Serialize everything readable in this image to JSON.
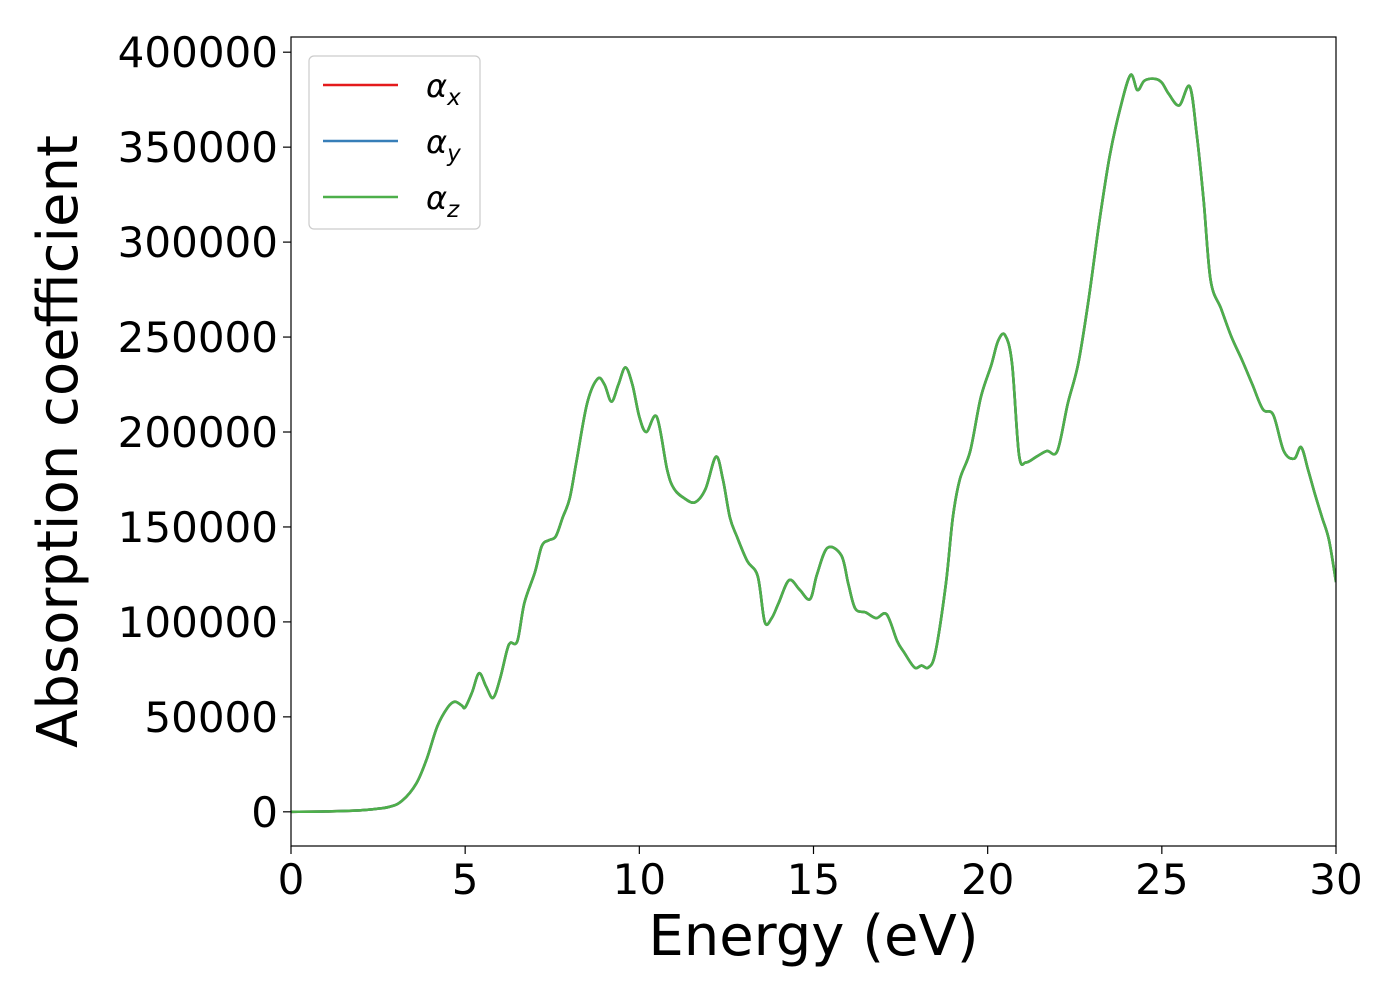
{
  "chart_data": {
    "type": "line",
    "title": "",
    "xlabel": "Energy (eV)",
    "ylabel": "Absorption coefficient",
    "xlim": [
      0,
      30
    ],
    "ylim": [
      -18000,
      408000
    ],
    "xticks": [
      0,
      5,
      10,
      15,
      20,
      25,
      30
    ],
    "yticks": [
      0,
      50000,
      100000,
      150000,
      200000,
      250000,
      300000,
      350000,
      400000
    ],
    "xtick_labels": [
      "0",
      "5",
      "10",
      "15",
      "20",
      "25",
      "30"
    ],
    "ytick_labels": [
      "0",
      "50000",
      "100000",
      "150000",
      "200000",
      "250000",
      "300000",
      "350000",
      "400000"
    ],
    "grid": false,
    "legend_position": "upper-left",
    "x": [
      0,
      1,
      2,
      2.8,
      3.2,
      3.6,
      3.9,
      4.2,
      4.5,
      4.7,
      4.9,
      5.0,
      5.2,
      5.4,
      5.6,
      5.8,
      6.0,
      6.2,
      6.3,
      6.5,
      6.7,
      7.0,
      7.2,
      7.4,
      7.6,
      7.8,
      8.0,
      8.2,
      8.5,
      8.8,
      9.0,
      9.2,
      9.4,
      9.6,
      9.8,
      10.0,
      10.2,
      10.5,
      10.8,
      11.0,
      11.3,
      11.6,
      11.9,
      12.2,
      12.4,
      12.6,
      12.8,
      13.1,
      13.4,
      13.6,
      13.8,
      14.0,
      14.3,
      14.6,
      14.9,
      15.1,
      15.4,
      15.8,
      16.0,
      16.2,
      16.5,
      16.8,
      17.1,
      17.4,
      17.6,
      17.9,
      18.1,
      18.3,
      18.5,
      18.8,
      19.0,
      19.2,
      19.5,
      19.8,
      20.1,
      20.3,
      20.5,
      20.7,
      20.9,
      21.1,
      21.4,
      21.7,
      22.0,
      22.3,
      22.6,
      22.9,
      23.2,
      23.5,
      23.8,
      24.1,
      24.3,
      24.5,
      24.8,
      25.0,
      25.2,
      25.5,
      25.8,
      26.0,
      26.2,
      26.4,
      26.7,
      27.0,
      27.3,
      27.6,
      27.9,
      28.2,
      28.5,
      28.8,
      29.0,
      29.2,
      29.4,
      29.6,
      29.8,
      30.0
    ],
    "series": [
      {
        "name": "αx",
        "label_base": "α",
        "label_sub": "x",
        "color": "#e41a1c",
        "y": [
          0,
          200,
          800,
          2500,
          6000,
          15000,
          28000,
          45000,
          55000,
          58000,
          56000,
          55000,
          63000,
          73000,
          66000,
          60000,
          70000,
          85000,
          89000,
          90000,
          110000,
          126000,
          140000,
          143000,
          145000,
          155000,
          165000,
          185000,
          215000,
          228000,
          225000,
          216000,
          225000,
          234000,
          225000,
          208000,
          200000,
          208000,
          180000,
          170000,
          165000,
          163000,
          170000,
          187000,
          175000,
          155000,
          145000,
          132000,
          124000,
          100000,
          102000,
          110000,
          122000,
          117000,
          112000,
          125000,
          139000,
          135000,
          120000,
          107000,
          105000,
          102000,
          104000,
          90000,
          84000,
          76000,
          77000,
          76000,
          84000,
          120000,
          155000,
          175000,
          190000,
          218000,
          235000,
          248000,
          251000,
          236000,
          188000,
          184000,
          187000,
          190000,
          190000,
          215000,
          236000,
          270000,
          310000,
          345000,
          370000,
          388000,
          380000,
          385000,
          386000,
          384000,
          378000,
          372000,
          382000,
          357000,
          322000,
          280000,
          265000,
          250000,
          238000,
          225000,
          212000,
          209000,
          190000,
          186000,
          192000,
          180000,
          167000,
          155000,
          143000,
          121000
        ]
      },
      {
        "name": "αy",
        "label_base": "α",
        "label_sub": "y",
        "color": "#377eb8",
        "y": [
          0,
          200,
          800,
          2500,
          6000,
          15000,
          28000,
          45000,
          55000,
          58000,
          56000,
          55000,
          63000,
          73000,
          66000,
          60000,
          70000,
          85000,
          89000,
          90000,
          110000,
          126000,
          140000,
          143000,
          145000,
          155000,
          165000,
          185000,
          215000,
          228000,
          225000,
          216000,
          225000,
          234000,
          225000,
          208000,
          200000,
          208000,
          180000,
          170000,
          165000,
          163000,
          170000,
          187000,
          175000,
          155000,
          145000,
          132000,
          124000,
          100000,
          102000,
          110000,
          122000,
          117000,
          112000,
          125000,
          139000,
          135000,
          120000,
          107000,
          105000,
          102000,
          104000,
          90000,
          84000,
          76000,
          77000,
          76000,
          84000,
          120000,
          155000,
          175000,
          190000,
          218000,
          235000,
          248000,
          251000,
          236000,
          188000,
          184000,
          187000,
          190000,
          190000,
          215000,
          236000,
          270000,
          310000,
          345000,
          370000,
          388000,
          380000,
          385000,
          386000,
          384000,
          378000,
          372000,
          382000,
          357000,
          322000,
          280000,
          265000,
          250000,
          238000,
          225000,
          212000,
          209000,
          190000,
          186000,
          192000,
          180000,
          167000,
          155000,
          143000,
          121000
        ]
      },
      {
        "name": "αz",
        "label_base": "α",
        "label_sub": "z",
        "color": "#4daf4a",
        "y": [
          0,
          200,
          800,
          2500,
          6000,
          15000,
          28000,
          45000,
          55000,
          58000,
          56000,
          55000,
          63000,
          73000,
          66000,
          60000,
          70000,
          85000,
          89000,
          90000,
          110000,
          126000,
          140000,
          143000,
          145000,
          155000,
          165000,
          185000,
          215000,
          228000,
          225000,
          216000,
          225000,
          234000,
          225000,
          208000,
          200000,
          208000,
          180000,
          170000,
          165000,
          163000,
          170000,
          187000,
          175000,
          155000,
          145000,
          132000,
          124000,
          100000,
          102000,
          110000,
          122000,
          117000,
          112000,
          125000,
          139000,
          135000,
          120000,
          107000,
          105000,
          102000,
          104000,
          90000,
          84000,
          76000,
          77000,
          76000,
          84000,
          120000,
          155000,
          175000,
          190000,
          218000,
          235000,
          248000,
          251000,
          236000,
          188000,
          184000,
          187000,
          190000,
          190000,
          215000,
          236000,
          270000,
          310000,
          345000,
          370000,
          388000,
          380000,
          385000,
          386000,
          384000,
          378000,
          372000,
          382000,
          357000,
          322000,
          280000,
          265000,
          250000,
          238000,
          225000,
          212000,
          209000,
          190000,
          186000,
          192000,
          180000,
          167000,
          155000,
          143000,
          121000
        ]
      }
    ]
  }
}
